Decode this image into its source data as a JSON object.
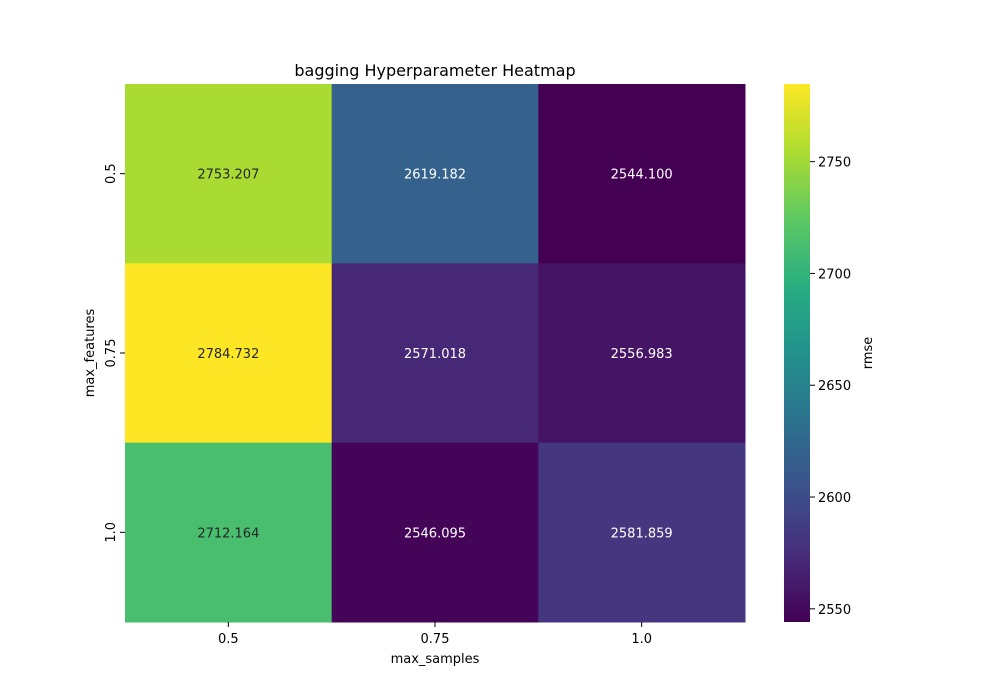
{
  "chart_data": {
    "type": "heatmap",
    "title": "bagging Hyperparameter Heatmap",
    "xlabel": "max_samples",
    "ylabel": "max_features",
    "x_categories": [
      "0.5",
      "0.75",
      "1.0"
    ],
    "y_categories": [
      "0.5",
      "0.75",
      "1.0"
    ],
    "values": [
      [
        2753.207,
        2619.182,
        2544.1
      ],
      [
        2784.732,
        2571.018,
        2556.983
      ],
      [
        2712.164,
        2546.095,
        2581.859
      ]
    ],
    "value_format": "3 decimals",
    "colormap": "viridis",
    "colorbar": {
      "label": "rmse",
      "ticks": [
        "2550",
        "2600",
        "2650",
        "2700",
        "2750"
      ],
      "tick_values": [
        2550,
        2600,
        2650,
        2700,
        2750
      ],
      "range": [
        2544.1,
        2784.732
      ]
    },
    "grid": false,
    "legend": "colorbar on right"
  }
}
